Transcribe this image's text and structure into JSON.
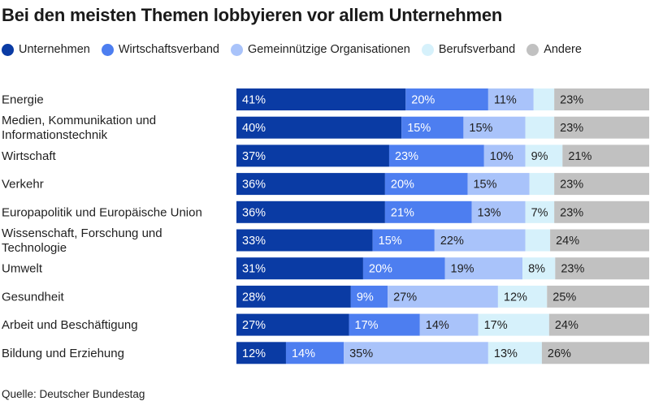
{
  "chart_data": {
    "type": "bar",
    "orientation": "horizontal",
    "stacked": true,
    "title": "Bei den meisten Themen lobbyieren vor allem Unternehmen",
    "source": "Quelle: Deutscher Bundestag",
    "categories": [
      "Energie",
      "Medien, Kommunikation und Informationstechnik",
      "Wirtschaft",
      "Verkehr",
      "Europapolitik und Europäische Union",
      "Wissenschaft, Forschung und Technologie",
      "Umwelt",
      "Gesundheit",
      "Arbeit und Beschäftigung",
      "Bildung und Erziehung"
    ],
    "series": [
      {
        "name": "Unternehmen",
        "color": "#0a3ba4",
        "label_color": "#ffffff",
        "values": [
          41,
          40,
          37,
          36,
          36,
          33,
          31,
          28,
          27,
          12
        ],
        "labels": [
          "41%",
          "40%",
          "37%",
          "36%",
          "36%",
          "33%",
          "31%",
          "28%",
          "27%",
          "12%"
        ]
      },
      {
        "name": "Wirtschaftsverband",
        "color": "#4d7ef0",
        "label_color": "#ffffff",
        "values": [
          20,
          15,
          23,
          20,
          21,
          15,
          20,
          9,
          17,
          14
        ],
        "labels": [
          "20%",
          "15%",
          "23%",
          "20%",
          "21%",
          "15%",
          "20%",
          "9%",
          "17%",
          "14%"
        ]
      },
      {
        "name": "Gemeinnützige Organisationen",
        "color": "#a9c3fa",
        "label_color": "#1f1f1f",
        "values": [
          11,
          15,
          10,
          15,
          13,
          22,
          19,
          27,
          14,
          35
        ],
        "labels": [
          "11%",
          "15%",
          "10%",
          "15%",
          "13%",
          "22%",
          "19%",
          "27%",
          "14%",
          "35%"
        ]
      },
      {
        "name": "Berufsverband",
        "color": "#d6f1fb",
        "label_color": "#1f1f1f",
        "values": [
          5,
          7,
          9,
          6,
          7,
          6,
          8,
          12,
          17,
          13
        ],
        "labels": [
          "",
          "",
          "9%",
          "",
          "7%",
          "",
          "8%",
          "12%",
          "17%",
          "13%"
        ]
      },
      {
        "name": "Andere",
        "color": "#c1c1c1",
        "label_color": "#1f1f1f",
        "values": [
          23,
          23,
          21,
          23,
          23,
          24,
          23,
          25,
          24,
          26
        ],
        "labels": [
          "23%",
          "23%",
          "21%",
          "23%",
          "23%",
          "24%",
          "23%",
          "25%",
          "24%",
          "26%"
        ]
      }
    ],
    "xlim": [
      0,
      100
    ],
    "grid": false,
    "legend": "top"
  }
}
